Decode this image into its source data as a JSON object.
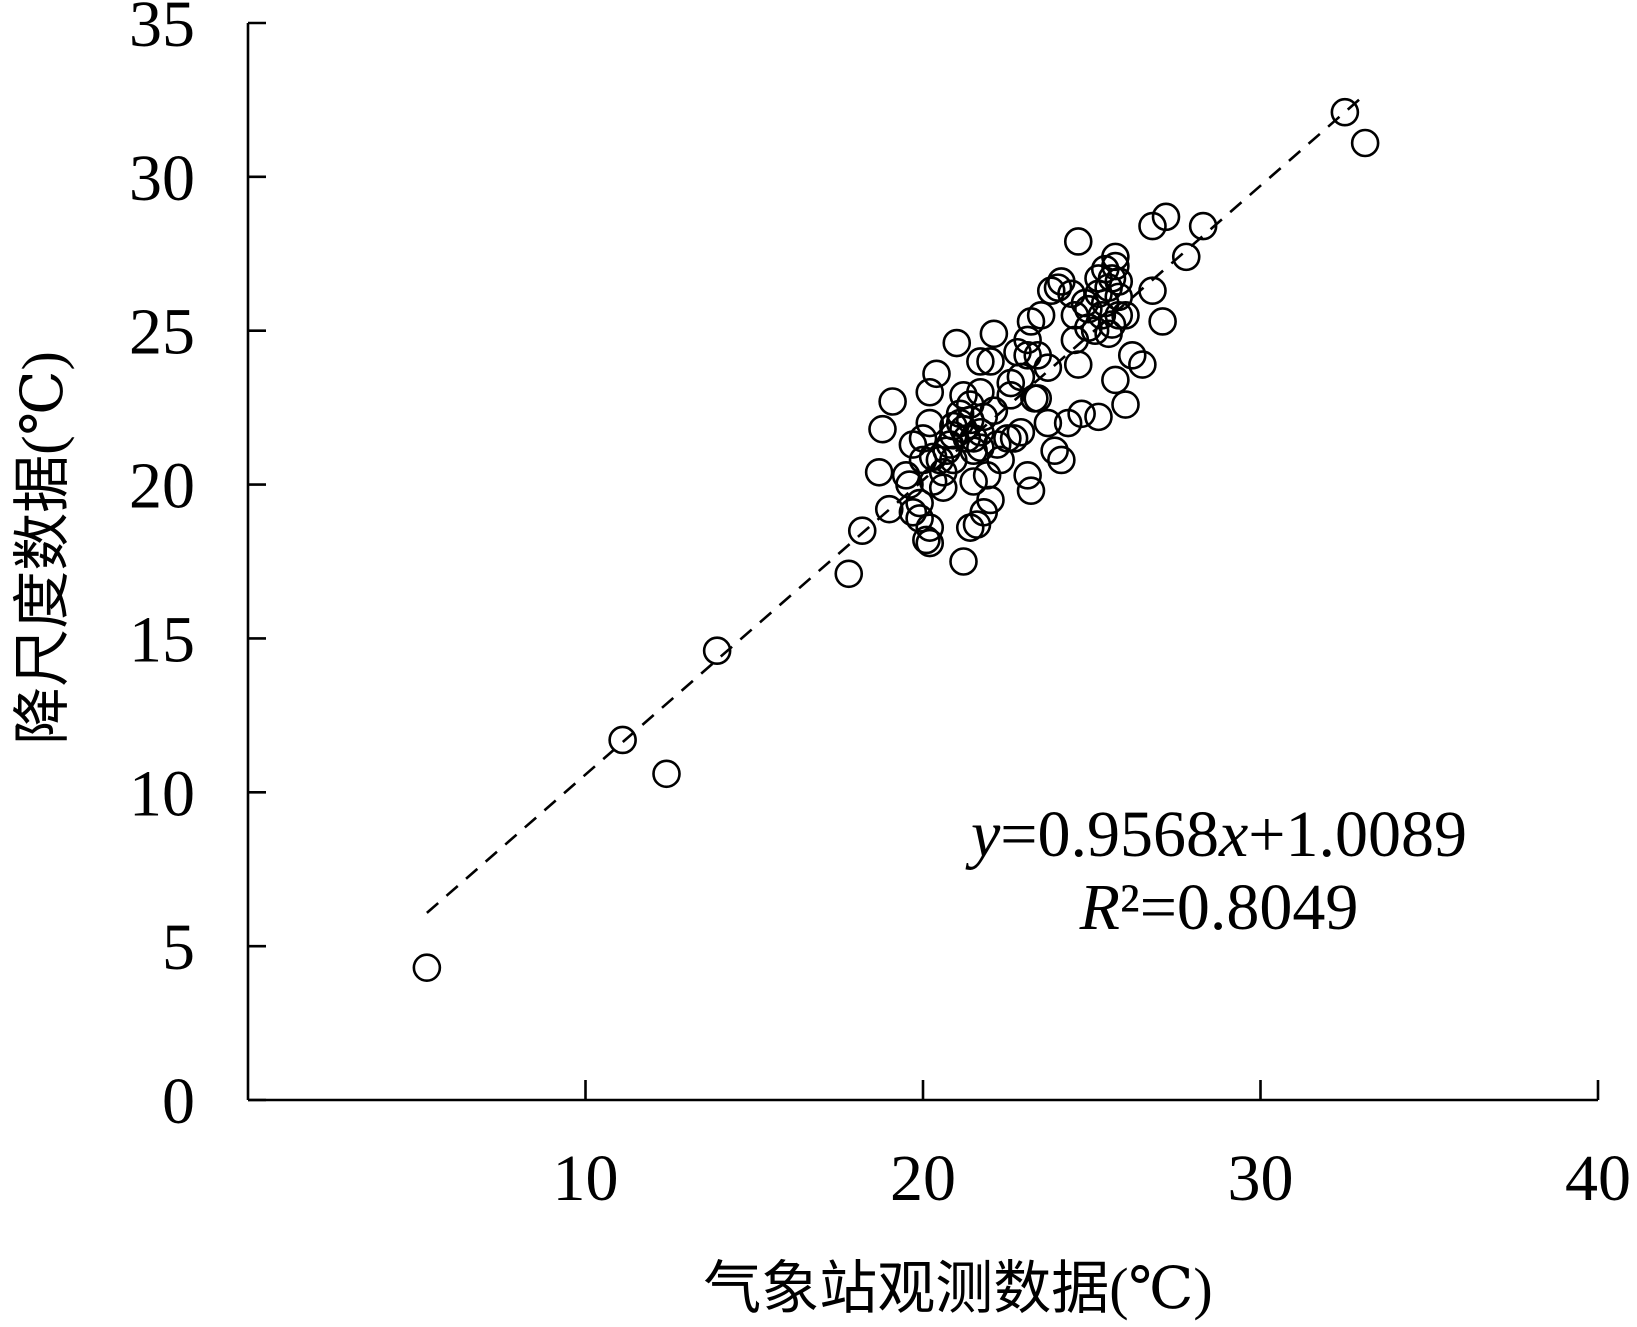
{
  "chart_data": {
    "type": "scatter",
    "xlabel": "气象站观测数据(℃)",
    "ylabel": "降尺度数据(℃)",
    "xlim": [
      0,
      40
    ],
    "ylim": [
      0,
      35
    ],
    "xticks": [
      10,
      20,
      30,
      40
    ],
    "yticks": [
      0,
      5,
      10,
      15,
      20,
      25,
      30,
      35
    ],
    "grid": false,
    "legend": "none",
    "series": [
      {
        "marker": "open-circle",
        "points": [
          [
            5.3,
            4.3
          ],
          [
            11.1,
            11.7
          ],
          [
            12.4,
            10.6
          ],
          [
            13.9,
            14.6
          ],
          [
            17.8,
            17.1
          ],
          [
            18.2,
            18.5
          ],
          [
            32.5,
            32.1
          ],
          [
            33.1,
            31.1
          ],
          [
            28.3,
            28.4
          ],
          [
            27.8,
            27.4
          ],
          [
            27.2,
            28.7
          ],
          [
            26.8,
            28.4
          ],
          [
            26.8,
            26.3
          ],
          [
            27.1,
            25.3
          ],
          [
            26.5,
            23.9
          ],
          [
            26.2,
            24.2
          ],
          [
            26.0,
            22.6
          ],
          [
            25.7,
            23.4
          ],
          [
            24.6,
            27.9
          ],
          [
            25.2,
            22.2
          ],
          [
            24.7,
            22.3
          ],
          [
            25.7,
            27.4
          ],
          [
            25.7,
            27.1
          ],
          [
            25.6,
            26.7
          ],
          [
            25.5,
            26.4
          ],
          [
            25.8,
            26.1
          ],
          [
            25.4,
            25.9
          ],
          [
            25.8,
            25.5
          ],
          [
            25.2,
            26.2
          ],
          [
            25.3,
            25.5
          ],
          [
            24.9,
            25.7
          ],
          [
            25.1,
            25.0
          ],
          [
            25.5,
            24.9
          ],
          [
            24.9,
            25.1
          ],
          [
            24.5,
            25.5
          ],
          [
            24.4,
            26.2
          ],
          [
            24.1,
            26.6
          ],
          [
            24.0,
            26.4
          ],
          [
            23.8,
            26.3
          ],
          [
            24.5,
            24.7
          ],
          [
            24.6,
            23.9
          ],
          [
            26.0,
            25.5
          ],
          [
            23.5,
            25.5
          ],
          [
            23.2,
            25.3
          ],
          [
            23.1,
            24.7
          ],
          [
            23.4,
            24.2
          ],
          [
            23.1,
            24.2
          ],
          [
            23.7,
            23.8
          ],
          [
            22.8,
            24.3
          ],
          [
            22.9,
            23.5
          ],
          [
            22.6,
            23.3
          ],
          [
            23.3,
            22.8
          ],
          [
            22.6,
            22.9
          ],
          [
            22.1,
            24.9
          ],
          [
            21.7,
            24.0
          ],
          [
            22.0,
            24.0
          ],
          [
            21.0,
            24.6
          ],
          [
            20.4,
            23.6
          ],
          [
            20.2,
            23.0
          ],
          [
            19.1,
            22.7
          ],
          [
            18.8,
            21.8
          ],
          [
            18.7,
            20.4
          ],
          [
            19.0,
            19.2
          ],
          [
            19.6,
            20.0
          ],
          [
            19.7,
            19.1
          ],
          [
            19.9,
            18.9
          ],
          [
            20.1,
            18.2
          ],
          [
            20.2,
            18.6
          ],
          [
            19.7,
            21.3
          ],
          [
            20.0,
            21.5
          ],
          [
            20.2,
            22.0
          ],
          [
            20.3,
            20.9
          ],
          [
            20.5,
            20.8
          ],
          [
            20.6,
            20.4
          ],
          [
            20.3,
            20.1
          ],
          [
            20.6,
            19.9
          ],
          [
            20.8,
            21.3
          ],
          [
            20.9,
            21.6
          ],
          [
            21.2,
            21.8
          ],
          [
            21.4,
            22.1
          ],
          [
            21.4,
            22.6
          ],
          [
            21.2,
            22.9
          ],
          [
            21.5,
            21.5
          ],
          [
            21.7,
            21.7
          ],
          [
            21.8,
            22.2
          ],
          [
            22.1,
            22.4
          ],
          [
            21.4,
            18.6
          ],
          [
            21.2,
            17.5
          ],
          [
            21.6,
            18.7
          ],
          [
            21.8,
            19.1
          ],
          [
            22.0,
            19.5
          ],
          [
            21.5,
            20.1
          ],
          [
            21.9,
            20.3
          ],
          [
            22.3,
            20.8
          ],
          [
            22.2,
            21.3
          ],
          [
            22.5,
            21.5
          ],
          [
            22.7,
            21.5
          ],
          [
            22.9,
            21.7
          ],
          [
            23.1,
            20.3
          ],
          [
            23.2,
            19.8
          ],
          [
            23.7,
            22.0
          ],
          [
            23.9,
            21.1
          ],
          [
            24.1,
            20.8
          ],
          [
            24.3,
            22.0
          ],
          [
            23.4,
            22.8
          ],
          [
            20.2,
            18.1
          ],
          [
            19.9,
            19.4
          ],
          [
            19.5,
            20.3
          ],
          [
            20.0,
            20.8
          ],
          [
            20.9,
            20.8
          ],
          [
            21.1,
            22.3
          ],
          [
            21.7,
            23.0
          ],
          [
            25.2,
            26.7
          ],
          [
            25.4,
            27.0
          ],
          [
            25.8,
            26.6
          ],
          [
            25.6,
            25.2
          ],
          [
            24.8,
            25.9
          ],
          [
            21.1,
            22.0
          ],
          [
            21.3,
            21.5
          ],
          [
            21.5,
            21.1
          ],
          [
            21.7,
            21.2
          ],
          [
            20.7,
            21.1
          ],
          [
            20.9,
            21.9
          ]
        ]
      }
    ],
    "trendline": {
      "slope": 0.9568,
      "intercept": 1.0089,
      "x_range": [
        5.3,
        33.0
      ],
      "style": "dashed"
    },
    "annotation": {
      "equation": "y=0.9568x+1.0089",
      "r_squared": "R²=0.8049"
    },
    "colors": {
      "background": "#ffffff",
      "marker": "#000000",
      "axis": "#000000",
      "trendline": "#000000"
    }
  }
}
